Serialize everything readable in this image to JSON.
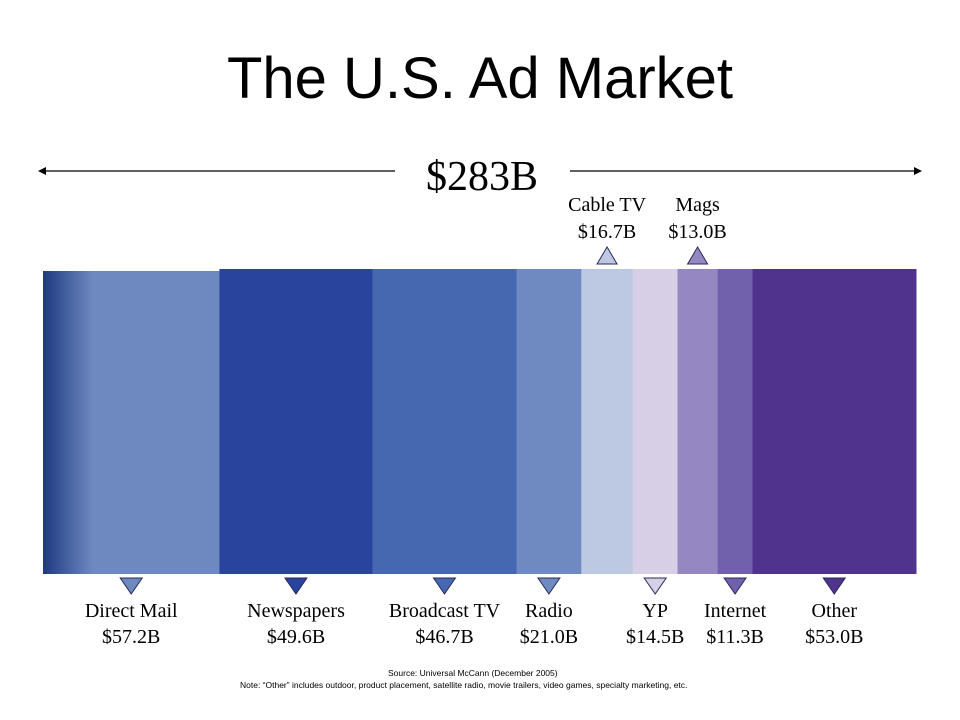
{
  "chart_data": {
    "type": "bar",
    "title": "The U.S. Ad Market",
    "total_label": "$283B",
    "total": 283,
    "categories": [
      "Direct Mail",
      "Newspapers",
      "Broadcast TV",
      "Radio",
      "Cable TV",
      "YP",
      "Mags",
      "Internet",
      "Other"
    ],
    "value_labels": [
      "$57.2B",
      "$49.6B",
      "$46.7B",
      "$21.0B",
      "$16.7B",
      "$14.5B",
      "$13.0B",
      "$11.3B",
      "$53.0B"
    ],
    "values": [
      57.2,
      49.6,
      46.7,
      21.0,
      16.7,
      14.5,
      13.0,
      11.3,
      53.0
    ],
    "label_positions": [
      "bottom",
      "bottom",
      "bottom",
      "bottom",
      "top",
      "bottom",
      "top",
      "bottom",
      "bottom"
    ],
    "colors": [
      "#6e88c0",
      "#28449c",
      "#4668b0",
      "#6e8ac0",
      "#bdc9e3",
      "#d6cfe6",
      "#9588c2",
      "#7160ac",
      "#50338c"
    ],
    "direct_mail_gradient_start": "#1e3a80",
    "source_text": "Source: Universal McCann (December 2005)",
    "note_text": "Note: “Other” includes outdoor, product placement, satellite radio, movie trailers, video games, specialty marketing, etc."
  }
}
